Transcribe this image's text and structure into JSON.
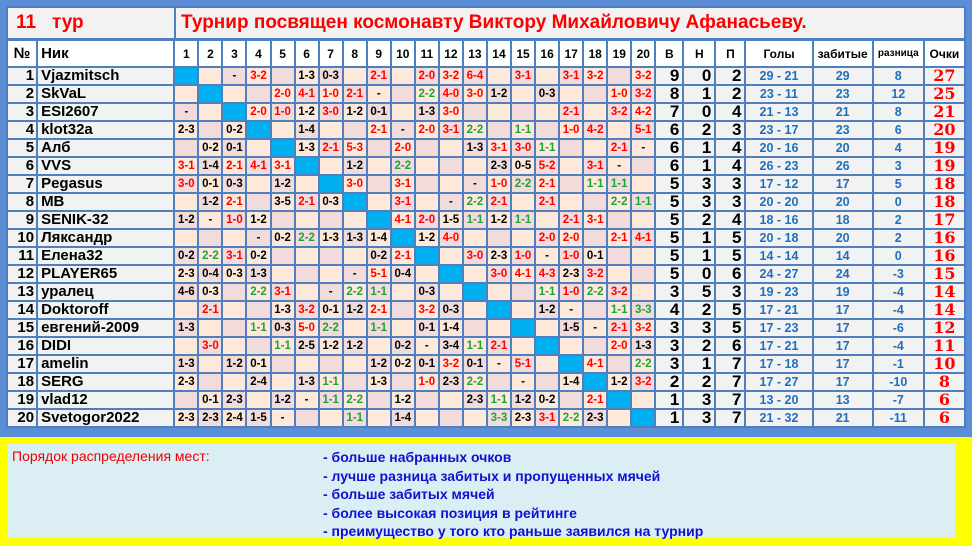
{
  "header": {
    "round_num": "11",
    "round_word": "тур",
    "title": "Турнир посвящен космонавту Виктору Михайловичу Афанасьеву."
  },
  "columns": {
    "num": "№",
    "nick": "Ник",
    "matches": [
      "1",
      "2",
      "3",
      "4",
      "5",
      "6",
      "7",
      "8",
      "9",
      "10",
      "11",
      "12",
      "13",
      "14",
      "15",
      "16",
      "17",
      "18",
      "19",
      "20"
    ],
    "w": "В",
    "d": "Н",
    "l": "П",
    "goals": "Голы",
    "scored": "забитые",
    "diff": "разница",
    "points": "Очки"
  },
  "colors": {
    "win": "#ff0000",
    "loss": "#000000",
    "draw": "#1ea33a",
    "diagonal": "#00b0f0",
    "border": "#4f7fbf",
    "footer_bg": "#ffff00"
  },
  "rows": [
    {
      "n": "1",
      "nick": "Vjazmitsch",
      "r": [
        "X",
        "",
        "-",
        "3-2",
        "",
        "1-3",
        "0-3",
        "",
        "2-1",
        "",
        "2-0",
        "3-2",
        "6-4",
        "",
        "3-1",
        "",
        "3-1",
        "3-2",
        "",
        "3-2"
      ],
      "w": "9",
      "d": "0",
      "l": "2",
      "goals": "29 - 21",
      "scored": "29",
      "diff": "8",
      "pts": "27"
    },
    {
      "n": "2",
      "nick": "SkVaL",
      "r": [
        "",
        "X",
        "",
        "",
        "2-0",
        "4-1",
        "1-0",
        "2-1",
        "-",
        "",
        "2-2",
        "4-0",
        "3-0",
        "1-2",
        "",
        "0-3",
        "",
        "",
        "1-0",
        "3-2"
      ],
      "w": "8",
      "d": "1",
      "l": "2",
      "goals": "23 - 11",
      "scored": "23",
      "diff": "12",
      "pts": "25"
    },
    {
      "n": "3",
      "nick": "ESI2607",
      "r": [
        "-",
        "",
        "X",
        "2-0",
        "1-0",
        "1-2",
        "3-0",
        "1-2",
        "0-1",
        "",
        "1-3",
        "3-0",
        "",
        "",
        "",
        "",
        "2-1",
        "",
        "3-2",
        "4-2"
      ],
      "w": "7",
      "d": "0",
      "l": "4",
      "goals": "21 - 13",
      "scored": "21",
      "diff": "8",
      "pts": "21"
    },
    {
      "n": "4",
      "nick": "klot32a",
      "r": [
        "2-3",
        "",
        "0-2",
        "X",
        "",
        "1-4",
        "",
        "",
        "2-1",
        "-",
        "2-0",
        "3-1",
        "2-2",
        "",
        "1-1",
        "",
        "1-0",
        "4-2",
        "",
        "5-1"
      ],
      "w": "6",
      "d": "2",
      "l": "3",
      "goals": "23 - 17",
      "scored": "23",
      "diff": "6",
      "pts": "20"
    },
    {
      "n": "5",
      "nick": "Алб",
      "r": [
        "",
        "0-2",
        "0-1",
        "",
        "X",
        "1-3",
        "2-1",
        "5-3",
        "",
        "2-0",
        "",
        "",
        "1-3",
        "3-1",
        "3-0",
        "1-1",
        "",
        "",
        "2-1",
        "-"
      ],
      "w": "6",
      "d": "1",
      "l": "4",
      "goals": "20 - 16",
      "scored": "20",
      "diff": "4",
      "pts": "19"
    },
    {
      "n": "6",
      "nick": "VVS",
      "r": [
        "3-1",
        "1-4",
        "2-1",
        "4-1",
        "3-1",
        "X",
        "",
        "1-2",
        "",
        "2-2",
        "",
        "",
        "",
        "2-3",
        "0-5",
        "5-2",
        "",
        "3-1",
        "-",
        ""
      ],
      "w": "6",
      "d": "1",
      "l": "4",
      "goals": "26 - 23",
      "scored": "26",
      "diff": "3",
      "pts": "19"
    },
    {
      "n": "7",
      "nick": "Pegasus",
      "r": [
        "3-0",
        "0-1",
        "0-3",
        "",
        "1-2",
        "",
        "X",
        "3-0",
        "",
        "3-1",
        "",
        "",
        "-",
        "1-0",
        "2-2",
        "2-1",
        "",
        "1-1",
        "1-1",
        ""
      ],
      "w": "5",
      "d": "3",
      "l": "3",
      "goals": "17 - 12",
      "scored": "17",
      "diff": "5",
      "pts": "18"
    },
    {
      "n": "8",
      "nick": "MB",
      "r": [
        "",
        "1-2",
        "2-1",
        "",
        "3-5",
        "2-1",
        "0-3",
        "X",
        "",
        "3-1",
        "",
        "-",
        "2-2",
        "2-1",
        "",
        "2-1",
        "",
        "",
        "2-2",
        "1-1"
      ],
      "w": "5",
      "d": "3",
      "l": "3",
      "goals": "20 - 20",
      "scored": "20",
      "diff": "0",
      "pts": "18"
    },
    {
      "n": "9",
      "nick": "SENIK-32",
      "r": [
        "1-2",
        "-",
        "1-0",
        "1-2",
        "",
        "",
        "",
        "",
        "X",
        "4-1",
        "2-0",
        "1-5",
        "1-1",
        "1-2",
        "1-1",
        "",
        "2-1",
        "3-1",
        "",
        ""
      ],
      "w": "5",
      "d": "2",
      "l": "4",
      "goals": "18 - 16",
      "scored": "18",
      "diff": "2",
      "pts": "17"
    },
    {
      "n": "10",
      "nick": "Ляксандр",
      "r": [
        "",
        "",
        "",
        "-",
        "0-2",
        "2-2",
        "1-3",
        "1-3",
        "1-4",
        "X",
        "1-2",
        "4-0",
        "",
        "",
        "",
        "2-0",
        "2-0",
        "",
        "2-1",
        "4-1"
      ],
      "w": "5",
      "d": "1",
      "l": "5",
      "goals": "20 - 18",
      "scored": "20",
      "diff": "2",
      "pts": "16"
    },
    {
      "n": "11",
      "nick": "Елена32",
      "r": [
        "0-2",
        "2-2",
        "3-1",
        "0-2",
        "",
        "",
        "",
        "",
        "0-2",
        "2-1",
        "X",
        "",
        "3-0",
        "2-3",
        "1-0",
        "-",
        "1-0",
        "0-1",
        "",
        ""
      ],
      "w": "5",
      "d": "1",
      "l": "5",
      "goals": "14 - 14",
      "scored": "14",
      "diff": "0",
      "pts": "16"
    },
    {
      "n": "12",
      "nick": "PLAYER65",
      "r": [
        "2-3",
        "0-4",
        "0-3",
        "1-3",
        "",
        "",
        "",
        "-",
        "5-1",
        "0-4",
        "",
        "X",
        "",
        "3-0",
        "4-1",
        "4-3",
        "2-3",
        "3-2",
        "",
        ""
      ],
      "w": "5",
      "d": "0",
      "l": "6",
      "goals": "24 - 27",
      "scored": "24",
      "diff": "-3",
      "pts": "15"
    },
    {
      "n": "13",
      "nick": "уралец",
      "r": [
        "4-6",
        "0-3",
        "",
        "2-2",
        "3-1",
        "",
        "-",
        "2-2",
        "1-1",
        "",
        "0-3",
        "",
        "X",
        "",
        "",
        "1-1",
        "1-0",
        "2-2",
        "3-2",
        ""
      ],
      "w": "3",
      "d": "5",
      "l": "3",
      "goals": "19 - 23",
      "scored": "19",
      "diff": "-4",
      "pts": "14"
    },
    {
      "n": "14",
      "nick": "Doktoroff",
      "r": [
        "",
        "2-1",
        "",
        "",
        "1-3",
        "3-2",
        "0-1",
        "1-2",
        "2-1",
        "",
        "3-2",
        "0-3",
        "",
        "X",
        "",
        "1-2",
        "-",
        "",
        "1-1",
        "3-3"
      ],
      "w": "4",
      "d": "2",
      "l": "5",
      "goals": "17 - 21",
      "scored": "17",
      "diff": "-4",
      "pts": "14"
    },
    {
      "n": "15",
      "nick": "евгений-2009",
      "r": [
        "1-3",
        "",
        "",
        "1-1",
        "0-3",
        "5-0",
        "2-2",
        "",
        "1-1",
        "",
        "0-1",
        "1-4",
        "",
        "",
        "X",
        "",
        "1-5",
        "-",
        "2-1",
        "3-2"
      ],
      "w": "3",
      "d": "3",
      "l": "5",
      "goals": "17 - 23",
      "scored": "17",
      "diff": "-6",
      "pts": "12"
    },
    {
      "n": "16",
      "nick": "DIDI",
      "r": [
        "",
        "3-0",
        "",
        "",
        "1-1",
        "2-5",
        "1-2",
        "1-2",
        "",
        "0-2",
        "-",
        "3-4",
        "1-1",
        "2-1",
        "",
        "X",
        "",
        "",
        "2-0",
        "1-3"
      ],
      "w": "3",
      "d": "2",
      "l": "6",
      "goals": "17 - 21",
      "scored": "17",
      "diff": "-4",
      "pts": "11"
    },
    {
      "n": "17",
      "nick": "amelin",
      "r": [
        "1-3",
        "",
        "1-2",
        "0-1",
        "",
        "",
        "",
        "",
        "1-2",
        "0-2",
        "0-1",
        "3-2",
        "0-1",
        "-",
        "5-1",
        "",
        "X",
        "4-1",
        "",
        "2-2"
      ],
      "w": "3",
      "d": "1",
      "l": "7",
      "goals": "17 - 18",
      "scored": "17",
      "diff": "-1",
      "pts": "10"
    },
    {
      "n": "18",
      "nick": "SERG",
      "r": [
        "2-3",
        "",
        "",
        "2-4",
        "",
        "1-3",
        "1-1",
        "",
        "1-3",
        "",
        "1-0",
        "2-3",
        "2-2",
        "",
        "-",
        "",
        "1-4",
        "X",
        "1-2",
        "3-2"
      ],
      "w": "2",
      "d": "2",
      "l": "7",
      "goals": "17 - 27",
      "scored": "17",
      "diff": "-10",
      "pts": "8"
    },
    {
      "n": "19",
      "nick": "vlad12",
      "r": [
        "",
        "0-1",
        "2-3",
        "",
        "1-2",
        "-",
        "1-1",
        "2-2",
        "",
        "1-2",
        "",
        "",
        "2-3",
        "1-1",
        "1-2",
        "0-2",
        "",
        "2-1",
        "X",
        ""
      ],
      "w": "1",
      "d": "3",
      "l": "7",
      "goals": "13 - 20",
      "scored": "13",
      "diff": "-7",
      "pts": "6"
    },
    {
      "n": "20",
      "nick": "Svetogor2022",
      "r": [
        "2-3",
        "2-3",
        "2-4",
        "1-5",
        "-",
        "",
        "",
        "1-1",
        "",
        "1-4",
        "",
        "",
        "",
        "3-3",
        "2-3",
        "3-1",
        "2-2",
        "2-3",
        "",
        "X"
      ],
      "w": "1",
      "d": "3",
      "l": "7",
      "goals": "21 - 32",
      "scored": "21",
      "diff": "-11",
      "pts": "6"
    }
  ],
  "footer": {
    "label": "Порядок распределения мест:",
    "rules": [
      "- больше набранных очков",
      "- лучше разница забитых и пропущенных мячей",
      "- больше забитых мячей",
      "- более высокая позиция в рейтинге",
      "- преимущество у того кто раньше заявился на турнир"
    ]
  }
}
